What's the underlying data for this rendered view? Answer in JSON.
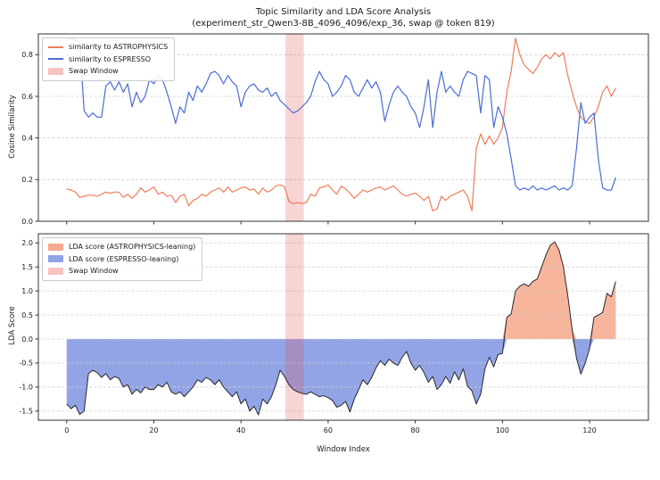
{
  "title": {
    "line1": "Topic Similarity and LDA Score Analysis",
    "line2": "(experiment_str_Qwen3-8B_4096_4096/exp_36, swap @ token 819)"
  },
  "xlabel": "Window Index",
  "xticks": [
    {
      "v": 0,
      "label": "0"
    },
    {
      "v": 20,
      "label": "20"
    },
    {
      "v": 40,
      "label": "40"
    },
    {
      "v": 60,
      "label": "60"
    },
    {
      "v": 80,
      "label": "80"
    },
    {
      "v": 100,
      "label": "100"
    },
    {
      "v": 120,
      "label": "120"
    }
  ],
  "style": {
    "grid_color": "#cfcfcf",
    "spine_color": "#333333",
    "text_color": "#1a1a1a",
    "background": "#ffffff"
  },
  "chart_data": [
    {
      "name": "cosine-similarity",
      "type": "line",
      "ylabel": "Cosine Similarity",
      "xlim": [
        -6.5,
        133.5
      ],
      "ylim": [
        0.0,
        0.9
      ],
      "x_start": 0,
      "x_step": 1,
      "grid": "horizontal-dashed",
      "legend_position": "upper-left",
      "yticks": [
        {
          "v": 0.0,
          "label": "0.0"
        },
        {
          "v": 0.2,
          "label": "0.2"
        },
        {
          "v": 0.4,
          "label": "0.4"
        },
        {
          "v": 0.6,
          "label": "0.6"
        },
        {
          "v": 0.8,
          "label": "0.8"
        }
      ],
      "swap_window": {
        "label": "Swap Window",
        "start": 50.2,
        "end": 54.4,
        "color": "rgba(220,80,80,0.24)",
        "legend_color": "#f6c3c1"
      },
      "series": [
        {
          "name": "similarity to ASTROPHYSICS",
          "color": "#ee7d5a",
          "line_width": 1.2,
          "values": [
            0.155,
            0.15,
            0.14,
            0.115,
            0.12,
            0.125,
            0.125,
            0.12,
            0.13,
            0.14,
            0.135,
            0.14,
            0.14,
            0.115,
            0.13,
            0.11,
            0.13,
            0.16,
            0.14,
            0.15,
            0.165,
            0.13,
            0.14,
            0.12,
            0.125,
            0.09,
            0.12,
            0.13,
            0.075,
            0.1,
            0.11,
            0.13,
            0.12,
            0.14,
            0.15,
            0.16,
            0.14,
            0.165,
            0.14,
            0.15,
            0.16,
            0.165,
            0.15,
            0.155,
            0.13,
            0.16,
            0.14,
            0.15,
            0.17,
            0.175,
            0.165,
            0.095,
            0.085,
            0.09,
            0.085,
            0.09,
            0.13,
            0.12,
            0.16,
            0.165,
            0.175,
            0.15,
            0.13,
            0.17,
            0.155,
            0.135,
            0.11,
            0.13,
            0.15,
            0.14,
            0.15,
            0.16,
            0.165,
            0.15,
            0.16,
            0.17,
            0.15,
            0.13,
            0.12,
            0.13,
            0.135,
            0.12,
            0.1,
            0.12,
            0.05,
            0.06,
            0.12,
            0.1,
            0.12,
            0.13,
            0.14,
            0.15,
            0.12,
            0.05,
            0.35,
            0.42,
            0.37,
            0.41,
            0.37,
            0.4,
            0.45,
            0.62,
            0.72,
            0.88,
            0.8,
            0.75,
            0.73,
            0.71,
            0.74,
            0.78,
            0.8,
            0.78,
            0.81,
            0.79,
            0.81,
            0.7,
            0.62,
            0.55,
            0.5,
            0.48,
            0.47,
            0.5,
            0.55,
            0.62,
            0.65,
            0.6,
            0.64
          ]
        },
        {
          "name": "similarity to ESPRESSO",
          "color": "#4a6cd8",
          "line_width": 1.2,
          "values": [
            0.87,
            0.88,
            0.87,
            0.86,
            0.53,
            0.5,
            0.52,
            0.5,
            0.5,
            0.65,
            0.67,
            0.63,
            0.67,
            0.62,
            0.66,
            0.55,
            0.62,
            0.57,
            0.6,
            0.68,
            0.66,
            0.7,
            0.68,
            0.62,
            0.55,
            0.47,
            0.55,
            0.52,
            0.62,
            0.58,
            0.65,
            0.62,
            0.66,
            0.71,
            0.72,
            0.7,
            0.66,
            0.7,
            0.67,
            0.65,
            0.55,
            0.62,
            0.65,
            0.66,
            0.63,
            0.62,
            0.64,
            0.6,
            0.62,
            0.58,
            0.56,
            0.54,
            0.52,
            0.53,
            0.55,
            0.57,
            0.6,
            0.67,
            0.72,
            0.68,
            0.66,
            0.6,
            0.62,
            0.65,
            0.7,
            0.68,
            0.62,
            0.6,
            0.64,
            0.68,
            0.64,
            0.67,
            0.62,
            0.48,
            0.56,
            0.62,
            0.65,
            0.62,
            0.6,
            0.55,
            0.52,
            0.45,
            0.55,
            0.68,
            0.45,
            0.62,
            0.72,
            0.62,
            0.65,
            0.62,
            0.6,
            0.68,
            0.72,
            0.71,
            0.7,
            0.52,
            0.7,
            0.68,
            0.45,
            0.55,
            0.5,
            0.42,
            0.3,
            0.17,
            0.15,
            0.16,
            0.15,
            0.17,
            0.15,
            0.16,
            0.15,
            0.16,
            0.17,
            0.15,
            0.16,
            0.15,
            0.17,
            0.35,
            0.57,
            0.47,
            0.5,
            0.52,
            0.3,
            0.16,
            0.15,
            0.15,
            0.21
          ]
        }
      ]
    },
    {
      "name": "lda-score",
      "type": "area",
      "ylabel": "LDA Score",
      "xlim": [
        -6.5,
        133.5
      ],
      "ylim": [
        -1.69,
        2.19
      ],
      "x_start": 0,
      "x_step": 1,
      "grid": "horizontal-dashed",
      "legend_position": "upper-left",
      "yticks": [
        {
          "v": -1.5,
          "label": "-1.5"
        },
        {
          "v": -1.0,
          "label": "-1.0"
        },
        {
          "v": -0.5,
          "label": "-0.5"
        },
        {
          "v": 0.0,
          "label": "0.0"
        },
        {
          "v": 0.5,
          "label": "0.5"
        },
        {
          "v": 1.0,
          "label": "1.0"
        },
        {
          "v": 1.5,
          "label": "1.5"
        },
        {
          "v": 2.0,
          "label": "2.0"
        }
      ],
      "swap_window": {
        "label": "Swap Window",
        "start": 50.2,
        "end": 54.4,
        "color": "rgba(220,80,80,0.24)",
        "legend_color": "#f6c3c1"
      },
      "fill_positive": "#f7b59c",
      "fill_negative": "#93a4e6",
      "series": [
        {
          "name": "LDA score",
          "line_color": "#26262e",
          "line_width": 1.0,
          "values": [
            -1.35,
            -1.45,
            -1.38,
            -1.57,
            -1.5,
            -0.72,
            -0.65,
            -0.7,
            -0.8,
            -0.72,
            -0.85,
            -0.78,
            -0.82,
            -1.0,
            -0.95,
            -1.15,
            -1.05,
            -1.12,
            -1.0,
            -1.05,
            -1.05,
            -0.95,
            -1.0,
            -0.9,
            -1.1,
            -1.15,
            -1.1,
            -1.2,
            -1.1,
            -1.0,
            -0.85,
            -0.9,
            -0.8,
            -0.85,
            -0.95,
            -0.85,
            -1.0,
            -1.1,
            -1.2,
            -1.1,
            -1.35,
            -1.25,
            -1.5,
            -1.4,
            -1.58,
            -1.25,
            -1.35,
            -1.2,
            -0.95,
            -0.65,
            -0.78,
            -0.95,
            -1.05,
            -1.1,
            -1.13,
            -1.15,
            -1.1,
            -1.15,
            -1.2,
            -1.18,
            -1.22,
            -1.28,
            -1.42,
            -1.38,
            -1.3,
            -1.52,
            -1.25,
            -1.05,
            -0.85,
            -0.95,
            -0.8,
            -0.6,
            -0.45,
            -0.55,
            -0.42,
            -0.5,
            -0.55,
            -0.38,
            -0.26,
            -0.5,
            -0.65,
            -0.55,
            -0.7,
            -0.9,
            -0.78,
            -1.05,
            -0.95,
            -0.78,
            -0.92,
            -0.68,
            -0.85,
            -0.62,
            -0.98,
            -1.08,
            -1.35,
            -1.15,
            -0.62,
            -0.38,
            -0.58,
            -0.32,
            -0.3,
            0.45,
            0.52,
            1.0,
            1.1,
            1.15,
            1.1,
            1.2,
            1.25,
            1.5,
            1.75,
            1.95,
            2.02,
            1.85,
            1.5,
            0.9,
            0.2,
            -0.4,
            -0.73,
            -0.5,
            -0.2,
            0.45,
            0.5,
            0.55,
            0.95,
            0.88,
            1.2
          ]
        }
      ],
      "legend": [
        {
          "label": "LDA score (ASTROPHYSICS-leaning)",
          "color": "#f5a98f"
        },
        {
          "label": "LDA score (ESPRESSO-leaning)",
          "color": "#8ea3e8"
        },
        {
          "label": "Swap Window",
          "color": "#f6c3c1"
        }
      ]
    }
  ]
}
